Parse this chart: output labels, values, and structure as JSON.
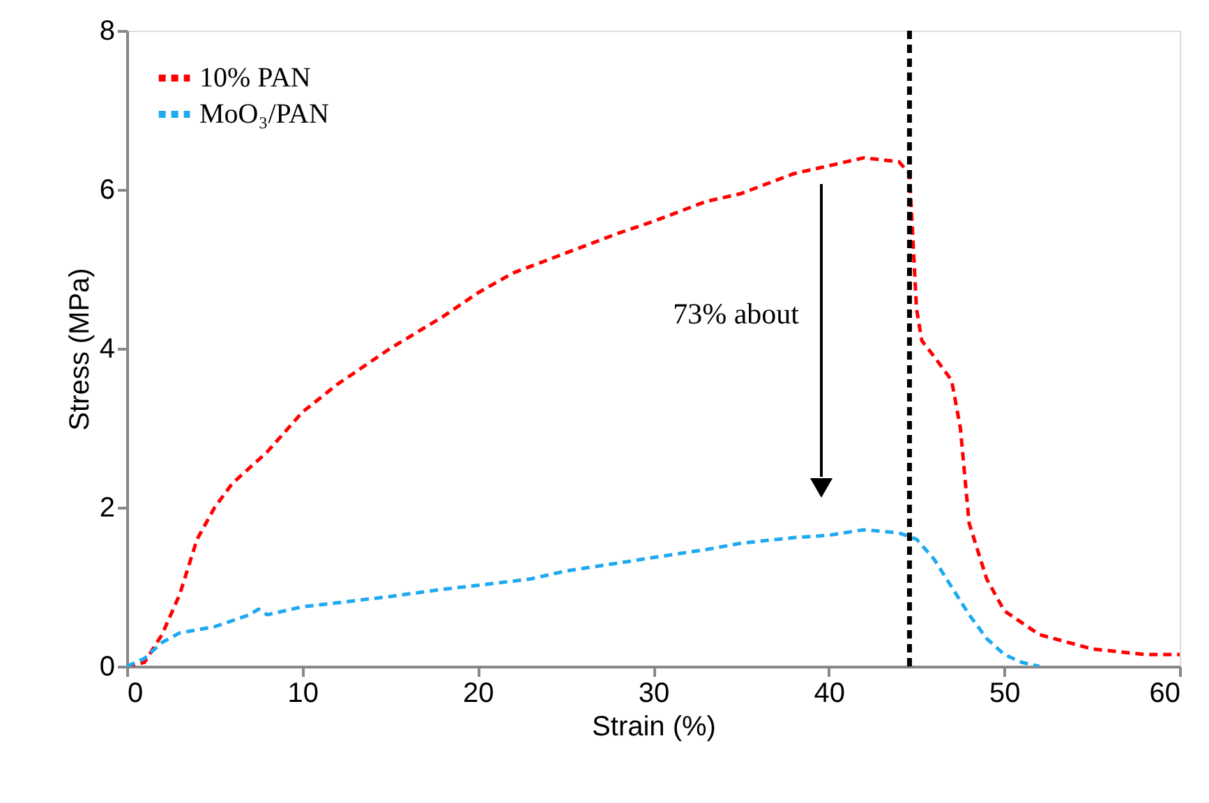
{
  "chart_data": {
    "type": "line",
    "xlabel": "Strain (%)",
    "ylabel": "Stress (MPa)",
    "xlim": [
      0,
      60
    ],
    "xticks": [
      0,
      10,
      20,
      30,
      40,
      50,
      60
    ],
    "ylim": [
      0,
      8
    ],
    "yticks": [
      0,
      2,
      4,
      6,
      8
    ],
    "grid": false,
    "legend": "top left",
    "line_style": "dashed",
    "marker": "none",
    "series": [
      {
        "name": "10% PAN",
        "color": "#ff0000",
        "x": [
          0,
          1,
          2,
          3,
          4,
          5,
          6,
          8,
          10,
          12,
          15,
          18,
          20,
          22,
          25,
          28,
          30,
          33,
          35,
          38,
          40,
          42,
          44,
          44.6,
          45,
          45.3,
          46,
          47,
          47.5,
          48,
          49,
          50,
          52,
          55,
          58,
          60
        ],
        "values": [
          0,
          0.05,
          0.4,
          0.9,
          1.6,
          2.0,
          2.3,
          2.7,
          3.2,
          3.55,
          4.0,
          4.4,
          4.7,
          4.95,
          5.2,
          5.45,
          5.6,
          5.85,
          5.95,
          6.2,
          6.3,
          6.4,
          6.35,
          6.2,
          4.5,
          4.1,
          3.9,
          3.6,
          3.0,
          1.8,
          1.1,
          0.7,
          0.4,
          0.22,
          0.15,
          0.15
        ]
      },
      {
        "name": "MoO₃/PAN",
        "color": "#1ea9f0",
        "x": [
          0,
          1,
          2,
          3,
          5,
          7,
          7.5,
          8,
          10,
          12,
          15,
          18,
          20,
          23,
          25,
          28,
          30,
          33,
          35,
          38,
          40,
          42,
          44,
          45,
          46,
          47,
          48,
          49,
          50,
          51,
          52
        ],
        "values": [
          0,
          0.1,
          0.3,
          0.42,
          0.5,
          0.65,
          0.72,
          0.65,
          0.75,
          0.8,
          0.88,
          0.97,
          1.02,
          1.1,
          1.2,
          1.3,
          1.37,
          1.47,
          1.55,
          1.62,
          1.65,
          1.72,
          1.68,
          1.6,
          1.35,
          1.0,
          0.65,
          0.35,
          0.15,
          0.05,
          0.0
        ]
      }
    ],
    "ref_lines": [
      {
        "axis": "x",
        "value": 44.6,
        "color": "#000000",
        "line_style": "dashed"
      }
    ],
    "annotations": [
      "73% about"
    ]
  }
}
